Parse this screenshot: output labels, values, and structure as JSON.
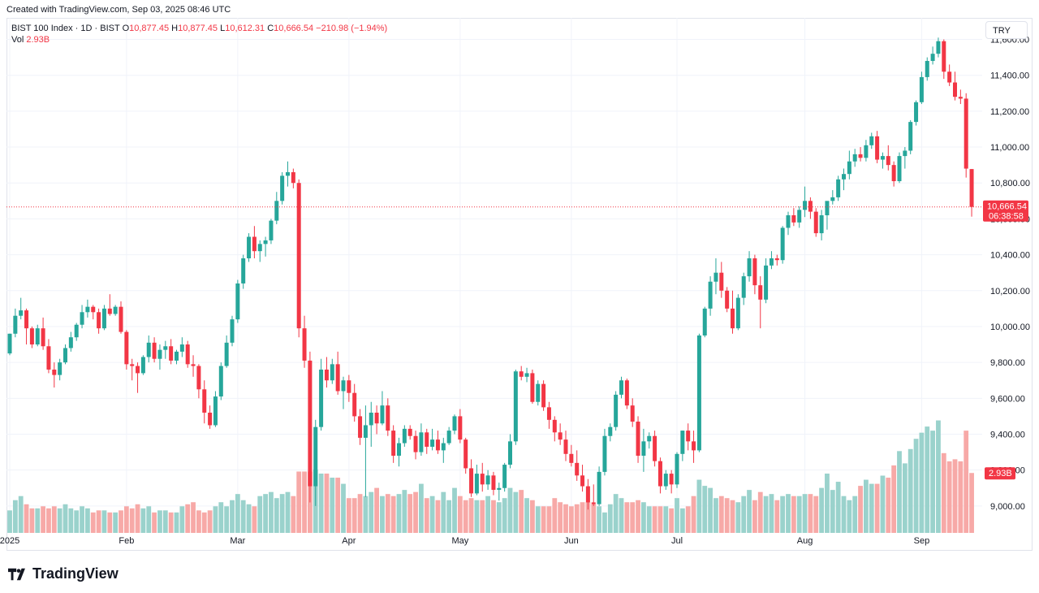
{
  "header": {
    "credit": "Created with TradingView.com, Sep 03, 2025 08:46 UTC"
  },
  "legend": {
    "symbol": "BIST 100 Index · 1D · BIST",
    "o_label": "O",
    "o_value": "10,877.45",
    "h_label": "H",
    "h_value": "10,877.45",
    "l_label": "L",
    "l_value": "10,612.31",
    "c_label": "C",
    "c_value": "10,666.54",
    "change": "−210.98 (−1.94%)",
    "vol_label": "Vol",
    "vol_value": "2.93B"
  },
  "currency": "TRY",
  "last_price_label": "10,666.54",
  "countdown_label": "06:38:58",
  "vol_badge": "2.93B",
  "logo_text": "TradingView",
  "colors": {
    "up": "#26a69a",
    "down": "#f23645",
    "vol_up": "#9ad2cc",
    "vol_down": "#f7a9a7",
    "grid": "#f0f3fa"
  },
  "chart_data": {
    "type": "candlestick",
    "ylim": [
      8850,
      11720
    ],
    "yticks": [
      "9,000.00",
      "9,200.00",
      "9,400.00",
      "9,600.00",
      "9,800.00",
      "10,000.00",
      "10,200.00",
      "10,400.00",
      "10,600.00",
      "10,800.00",
      "11,000.00",
      "11,200.00",
      "11,400.00",
      "11,600.00"
    ],
    "xticks": [
      {
        "label": "2025",
        "index": 0
      },
      {
        "label": "Feb",
        "index": 21
      },
      {
        "label": "Mar",
        "index": 41
      },
      {
        "label": "Apr",
        "index": 61
      },
      {
        "label": "May",
        "index": 81
      },
      {
        "label": "Jun",
        "index": 101
      },
      {
        "label": "Jul",
        "index": 120
      },
      {
        "label": "Aug",
        "index": 143
      },
      {
        "label": "Sep",
        "index": 164
      }
    ],
    "last_price": 10666.54,
    "candles": [
      [
        9850,
        9960,
        9840,
        9960,
        1.1
      ],
      [
        9960,
        10100,
        9940,
        10060,
        1.6
      ],
      [
        10060,
        10160,
        10040,
        10090,
        1.8
      ],
      [
        10090,
        10100,
        9900,
        9990,
        1.4
      ],
      [
        9990,
        10000,
        9880,
        9900,
        1.2
      ],
      [
        9900,
        10010,
        9890,
        9990,
        1.2
      ],
      [
        9990,
        10050,
        9870,
        9890,
        1.3
      ],
      [
        9890,
        9930,
        9740,
        9760,
        1.2
      ],
      [
        9760,
        9800,
        9660,
        9730,
        1.3
      ],
      [
        9730,
        9820,
        9700,
        9800,
        1.2
      ],
      [
        9800,
        9900,
        9790,
        9880,
        1.4
      ],
      [
        9880,
        9970,
        9860,
        9940,
        1.2
      ],
      [
        9940,
        10020,
        9920,
        10010,
        1.1
      ],
      [
        10010,
        10120,
        9990,
        10080,
        1.3
      ],
      [
        10080,
        10150,
        10050,
        10110,
        1.2
      ],
      [
        10110,
        10120,
        10040,
        10080,
        1.0
      ],
      [
        10080,
        10100,
        9960,
        9990,
        1.1
      ],
      [
        9990,
        10120,
        9980,
        10100,
        1.1
      ],
      [
        10100,
        10180,
        10060,
        10070,
        1.0
      ],
      [
        10070,
        10120,
        10060,
        10110,
        1.0
      ],
      [
        10110,
        10140,
        9960,
        9970,
        1.1
      ],
      [
        9970,
        9980,
        9760,
        9790,
        1.3
      ],
      [
        9790,
        9820,
        9700,
        9780,
        1.2
      ],
      [
        9780,
        9800,
        9630,
        9740,
        1.4
      ],
      [
        9740,
        9840,
        9730,
        9830,
        1.2
      ],
      [
        9830,
        9950,
        9800,
        9910,
        1.3
      ],
      [
        9910,
        9940,
        9800,
        9820,
        1.0
      ],
      [
        9820,
        9900,
        9760,
        9870,
        1.1
      ],
      [
        9870,
        9920,
        9820,
        9890,
        1.1
      ],
      [
        9890,
        9930,
        9790,
        9810,
        1.0
      ],
      [
        9810,
        9870,
        9790,
        9860,
        1.0
      ],
      [
        9860,
        9940,
        9830,
        9900,
        1.3
      ],
      [
        9900,
        9920,
        9770,
        9790,
        1.4
      ],
      [
        9790,
        9840,
        9720,
        9780,
        1.5
      ],
      [
        9780,
        9790,
        9600,
        9650,
        1.1
      ],
      [
        9650,
        9700,
        9460,
        9520,
        1.0
      ],
      [
        9520,
        9560,
        9430,
        9450,
        1.1
      ],
      [
        9450,
        9640,
        9440,
        9610,
        1.3
      ],
      [
        9610,
        9800,
        9590,
        9780,
        1.5
      ],
      [
        9780,
        9950,
        9770,
        9910,
        1.3
      ],
      [
        9910,
        10060,
        9890,
        10040,
        1.6
      ],
      [
        10040,
        10260,
        10020,
        10240,
        1.9
      ],
      [
        10240,
        10400,
        10210,
        10380,
        1.6
      ],
      [
        10380,
        10520,
        10360,
        10500,
        1.4
      ],
      [
        10500,
        10560,
        10380,
        10420,
        1.3
      ],
      [
        10420,
        10480,
        10360,
        10460,
        1.8
      ],
      [
        10460,
        10500,
        10390,
        10480,
        1.9
      ],
      [
        10480,
        10600,
        10460,
        10590,
        2.0
      ],
      [
        10590,
        10750,
        10570,
        10700,
        1.7
      ],
      [
        10700,
        10860,
        10680,
        10840,
        1.9
      ],
      [
        10840,
        10920,
        10780,
        10860,
        2.0
      ],
      [
        10860,
        10880,
        10770,
        10800,
        1.8
      ],
      [
        10800,
        10820,
        9940,
        9990,
        3.0
      ],
      [
        9990,
        10060,
        9770,
        9810,
        3.0
      ],
      [
        9810,
        9860,
        9020,
        9110,
        3.0
      ],
      [
        9110,
        9480,
        9000,
        9440,
        3.1
      ],
      [
        9440,
        9820,
        9420,
        9760,
        2.9
      ],
      [
        9760,
        9830,
        9660,
        9700,
        2.9
      ],
      [
        9700,
        9820,
        9680,
        9790,
        2.7
      ],
      [
        9790,
        9860,
        9620,
        9640,
        2.7
      ],
      [
        9640,
        9720,
        9540,
        9700,
        2.4
      ],
      [
        9700,
        9730,
        9580,
        9630,
        1.7
      ],
      [
        9630,
        9680,
        9470,
        9500,
        1.7
      ],
      [
        9500,
        9540,
        9340,
        9380,
        1.9
      ],
      [
        9380,
        9560,
        9050,
        9450,
        1.8
      ],
      [
        9450,
        9580,
        9330,
        9520,
        2.0
      ],
      [
        9520,
        9560,
        9400,
        9460,
        2.2
      ],
      [
        9460,
        9640,
        9450,
        9560,
        1.8
      ],
      [
        9560,
        9600,
        9390,
        9420,
        1.9
      ],
      [
        9420,
        9450,
        9240,
        9280,
        1.8
      ],
      [
        9280,
        9380,
        9220,
        9350,
        1.9
      ],
      [
        9350,
        9450,
        9330,
        9430,
        2.1
      ],
      [
        9430,
        9450,
        9370,
        9390,
        1.9
      ],
      [
        9390,
        9420,
        9260,
        9300,
        2.0
      ],
      [
        9300,
        9460,
        9280,
        9410,
        2.4
      ],
      [
        9410,
        9430,
        9290,
        9330,
        1.7
      ],
      [
        9330,
        9430,
        9310,
        9370,
        1.8
      ],
      [
        9370,
        9420,
        9290,
        9310,
        1.6
      ],
      [
        9310,
        9380,
        9240,
        9350,
        2.0
      ],
      [
        9350,
        9440,
        9340,
        9420,
        1.6
      ],
      [
        9420,
        9510,
        9400,
        9500,
        2.2
      ],
      [
        9500,
        9540,
        9350,
        9370,
        1.8
      ],
      [
        9370,
        9380,
        9180,
        9210,
        1.6
      ],
      [
        9210,
        9260,
        9050,
        9070,
        1.7
      ],
      [
        9070,
        9230,
        9060,
        9180,
        1.6
      ],
      [
        9180,
        9240,
        9080,
        9120,
        1.6
      ],
      [
        9120,
        9200,
        9090,
        9170,
        1.8
      ],
      [
        9170,
        9190,
        9060,
        9090,
        1.6
      ],
      [
        9090,
        9130,
        9030,
        9100,
        1.5
      ],
      [
        9100,
        9240,
        9080,
        9230,
        1.7
      ],
      [
        9230,
        9400,
        9210,
        9360,
        2.2
      ],
      [
        9360,
        9760,
        9340,
        9750,
        2.0
      ],
      [
        9750,
        9780,
        9700,
        9720,
        2.1
      ],
      [
        9720,
        9770,
        9690,
        9740,
        1.7
      ],
      [
        9740,
        9760,
        9570,
        9580,
        1.6
      ],
      [
        9580,
        9700,
        9560,
        9680,
        1.3
      ],
      [
        9680,
        9700,
        9530,
        9550,
        1.3
      ],
      [
        9550,
        9580,
        9430,
        9480,
        1.3
      ],
      [
        9480,
        9500,
        9360,
        9410,
        1.7
      ],
      [
        9410,
        9460,
        9340,
        9370,
        1.5
      ],
      [
        9370,
        9420,
        9250,
        9290,
        1.4
      ],
      [
        9290,
        9340,
        9220,
        9240,
        1.3
      ],
      [
        9240,
        9310,
        9140,
        9170,
        1.4
      ],
      [
        9170,
        9230,
        9080,
        9110,
        1.5
      ],
      [
        9110,
        9150,
        8980,
        9020,
        1.5
      ],
      [
        9020,
        9120,
        9000,
        9010,
        1.4
      ],
      [
        9010,
        9220,
        9000,
        9190,
        1.3
      ],
      [
        9190,
        9430,
        9170,
        9390,
        1.0
      ],
      [
        9390,
        9460,
        9360,
        9440,
        1.4
      ],
      [
        9440,
        9640,
        9420,
        9620,
        1.9
      ],
      [
        9620,
        9720,
        9600,
        9700,
        1.7
      ],
      [
        9700,
        9710,
        9540,
        9560,
        1.5
      ],
      [
        9560,
        9600,
        9440,
        9470,
        1.5
      ],
      [
        9470,
        9500,
        9240,
        9280,
        1.6
      ],
      [
        9280,
        9430,
        9190,
        9360,
        1.5
      ],
      [
        9360,
        9410,
        9320,
        9390,
        1.3
      ],
      [
        9390,
        9420,
        9220,
        9250,
        1.3
      ],
      [
        9250,
        9270,
        9070,
        9110,
        1.3
      ],
      [
        9110,
        9200,
        9090,
        9180,
        1.3
      ],
      [
        9180,
        9200,
        9070,
        9120,
        1.2
      ],
      [
        9120,
        9300,
        9100,
        9290,
        1.7
      ],
      [
        9290,
        9420,
        9250,
        9420,
        1.2
      ],
      [
        9420,
        9460,
        9310,
        9360,
        1.3
      ],
      [
        9360,
        9420,
        9240,
        9310,
        1.8
      ],
      [
        9310,
        9960,
        9300,
        9950,
        2.6
      ],
      [
        9950,
        10110,
        9940,
        10100,
        2.3
      ],
      [
        10100,
        10280,
        10060,
        10250,
        2.2
      ],
      [
        10250,
        10380,
        10180,
        10300,
        1.7
      ],
      [
        10300,
        10360,
        10160,
        10200,
        1.8
      ],
      [
        10200,
        10220,
        10080,
        10100,
        1.7
      ],
      [
        10100,
        10200,
        9960,
        9990,
        1.6
      ],
      [
        9990,
        10180,
        9980,
        10160,
        1.5
      ],
      [
        10160,
        10300,
        10120,
        10280,
        1.8
      ],
      [
        10280,
        10420,
        10250,
        10380,
        2.1
      ],
      [
        10380,
        10400,
        10180,
        10230,
        1.6
      ],
      [
        10230,
        10280,
        9990,
        10150,
        2.0
      ],
      [
        10150,
        10380,
        10130,
        10340,
        1.8
      ],
      [
        10340,
        10420,
        10320,
        10380,
        1.9
      ],
      [
        10380,
        10400,
        10340,
        10370,
        1.6
      ],
      [
        10370,
        10560,
        10350,
        10550,
        1.8
      ],
      [
        10550,
        10640,
        10510,
        10620,
        1.9
      ],
      [
        10620,
        10660,
        10560,
        10580,
        1.8
      ],
      [
        10580,
        10670,
        10550,
        10650,
        1.8
      ],
      [
        10650,
        10780,
        10610,
        10700,
        1.9
      ],
      [
        10700,
        10720,
        10600,
        10640,
        1.9
      ],
      [
        10640,
        10660,
        10500,
        10520,
        1.8
      ],
      [
        10520,
        10650,
        10480,
        10620,
        2.2
      ],
      [
        10620,
        10680,
        10540,
        10700,
        2.9
      ],
      [
        10700,
        10760,
        10680,
        10720,
        2.1
      ],
      [
        10720,
        10840,
        10700,
        10820,
        2.5
      ],
      [
        10820,
        10880,
        10760,
        10850,
        1.8
      ],
      [
        10850,
        10980,
        10820,
        10920,
        1.6
      ],
      [
        10920,
        10990,
        10890,
        10960,
        1.8
      ],
      [
        10960,
        11000,
        10920,
        10940,
        2.3
      ],
      [
        10940,
        11040,
        10920,
        11010,
        2.6
      ],
      [
        11010,
        11080,
        10990,
        11060,
        2.4
      ],
      [
        11060,
        11090,
        10910,
        10930,
        2.4
      ],
      [
        10930,
        10970,
        10880,
        10950,
        2.8
      ],
      [
        10950,
        11010,
        10870,
        10900,
        2.7
      ],
      [
        10900,
        10920,
        10780,
        10810,
        3.3
      ],
      [
        10810,
        10970,
        10800,
        10950,
        4.0
      ],
      [
        10950,
        11000,
        10880,
        10980,
        3.4
      ],
      [
        10980,
        11150,
        10960,
        11140,
        4.1
      ],
      [
        11140,
        11260,
        11120,
        11250,
        4.6
      ],
      [
        11250,
        11420,
        11240,
        11390,
        4.9
      ],
      [
        11390,
        11500,
        11370,
        11480,
        5.2
      ],
      [
        11480,
        11560,
        11460,
        11520,
        5.0
      ],
      [
        11520,
        11610,
        11500,
        11590,
        5.5
      ],
      [
        11590,
        11600,
        11380,
        11420,
        3.9
      ],
      [
        11420,
        11460,
        11340,
        11360,
        3.5
      ],
      [
        11360,
        11420,
        11260,
        11280,
        3.6
      ],
      [
        11280,
        11320,
        11240,
        11270,
        3.5
      ],
      [
        11270,
        11300,
        10830,
        10880,
        5.0
      ],
      [
        10877.45,
        10877.45,
        10612.31,
        10666.54,
        2.93
      ]
    ]
  }
}
